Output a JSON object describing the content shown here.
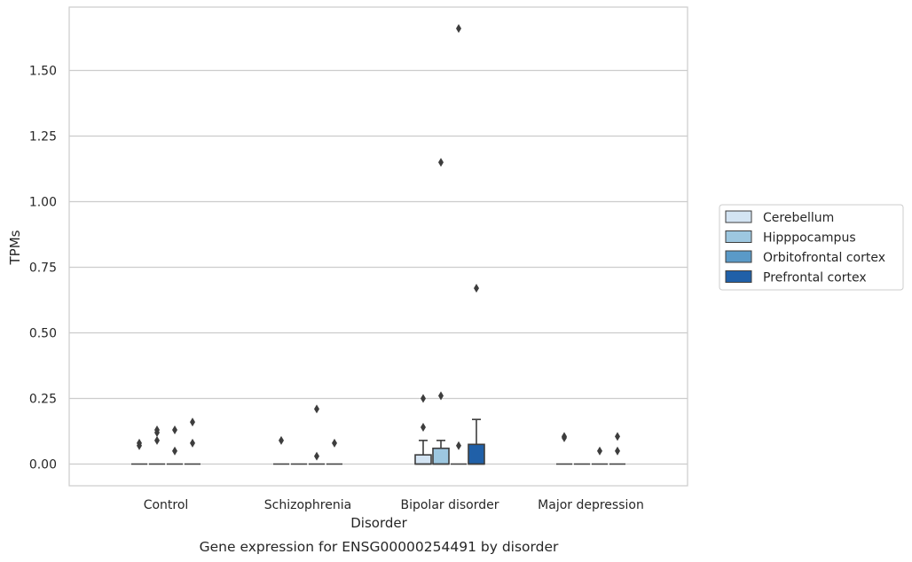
{
  "chart_data": {
    "type": "box",
    "caption": "Gene expression for ENSG00000254491 by disorder",
    "xlabel": "Disorder",
    "ylabel": "TPMs",
    "ylim": [
      -0.085,
      1.78
    ],
    "yticks": [
      "0.00",
      "0.25",
      "0.50",
      "0.75",
      "1.00",
      "1.25",
      "1.50"
    ],
    "ytick_values": [
      0.0,
      0.25,
      0.5,
      0.75,
      1.0,
      1.25,
      1.5
    ],
    "grid": "horizontal",
    "legend_position": "right",
    "categories": [
      "Control",
      "Schizophrenia",
      "Bipolar disorder",
      "Major depression"
    ],
    "series": [
      {
        "name": "Cerebellum",
        "color": "#d3e4f3"
      },
      {
        "name": "Hipppocampus",
        "color": "#9dc7e0"
      },
      {
        "name": "Orbitofrontal cortex",
        "color": "#5a9ac8"
      },
      {
        "name": "Prefrontal cortex",
        "color": "#2060a8"
      }
    ],
    "boxes": [
      {
        "category": "Control",
        "series": "Cerebellum",
        "q1": 0,
        "median": 0,
        "q3": 0,
        "whisker_low": 0,
        "whisker_high": 0,
        "outliers": [
          0.07,
          0.08
        ]
      },
      {
        "category": "Control",
        "series": "Hipppocampus",
        "q1": 0,
        "median": 0,
        "q3": 0,
        "whisker_low": 0,
        "whisker_high": 0,
        "outliers": [
          0.09,
          0.12,
          0.13
        ]
      },
      {
        "category": "Control",
        "series": "Orbitofrontal cortex",
        "q1": 0,
        "median": 0,
        "q3": 0,
        "whisker_low": 0,
        "whisker_high": 0,
        "outliers": [
          0.05,
          0.13
        ]
      },
      {
        "category": "Control",
        "series": "Prefrontal cortex",
        "q1": 0,
        "median": 0,
        "q3": 0,
        "whisker_low": 0,
        "whisker_high": 0,
        "outliers": [
          0.08,
          0.16
        ]
      },
      {
        "category": "Schizophrenia",
        "series": "Cerebellum",
        "q1": 0,
        "median": 0,
        "q3": 0,
        "whisker_low": 0,
        "whisker_high": 0,
        "outliers": [
          0.09
        ]
      },
      {
        "category": "Schizophrenia",
        "series": "Hipppocampus",
        "q1": 0,
        "median": 0,
        "q3": 0,
        "whisker_low": 0,
        "whisker_high": 0,
        "outliers": []
      },
      {
        "category": "Schizophrenia",
        "series": "Orbitofrontal cortex",
        "q1": 0,
        "median": 0,
        "q3": 0,
        "whisker_low": 0,
        "whisker_high": 0,
        "outliers": [
          0.03,
          0.21
        ]
      },
      {
        "category": "Schizophrenia",
        "series": "Prefrontal cortex",
        "q1": 0,
        "median": 0,
        "q3": 0,
        "whisker_low": 0,
        "whisker_high": 0,
        "outliers": [
          0.08
        ]
      },
      {
        "category": "Bipolar disorder",
        "series": "Cerebellum",
        "q1": 0,
        "median": 0,
        "q3": 0.035,
        "whisker_low": 0,
        "whisker_high": 0.09,
        "outliers": [
          0.14,
          0.25
        ]
      },
      {
        "category": "Bipolar disorder",
        "series": "Hipppocampus",
        "q1": 0,
        "median": 0,
        "q3": 0.06,
        "whisker_low": 0,
        "whisker_high": 0.09,
        "outliers": [
          0.26,
          1.15
        ]
      },
      {
        "category": "Bipolar disorder",
        "series": "Orbitofrontal cortex",
        "q1": 0,
        "median": 0,
        "q3": 0,
        "whisker_low": 0,
        "whisker_high": 0,
        "outliers": [
          0.07,
          1.66
        ]
      },
      {
        "category": "Bipolar disorder",
        "series": "Prefrontal cortex",
        "q1": 0,
        "median": 0,
        "q3": 0.075,
        "whisker_low": 0,
        "whisker_high": 0.17,
        "outliers": [
          0.67
        ]
      },
      {
        "category": "Major depression",
        "series": "Cerebellum",
        "q1": 0,
        "median": 0,
        "q3": 0,
        "whisker_low": 0,
        "whisker_high": 0,
        "outliers": [
          0.1,
          0.105
        ]
      },
      {
        "category": "Major depression",
        "series": "Hipppocampus",
        "q1": 0,
        "median": 0,
        "q3": 0,
        "whisker_low": 0,
        "whisker_high": 0,
        "outliers": []
      },
      {
        "category": "Major depression",
        "series": "Orbitofrontal cortex",
        "q1": 0,
        "median": 0,
        "q3": 0,
        "whisker_low": 0,
        "whisker_high": 0,
        "outliers": [
          0.05
        ]
      },
      {
        "category": "Major depression",
        "series": "Prefrontal cortex",
        "q1": 0,
        "median": 0,
        "q3": 0,
        "whisker_low": 0,
        "whisker_high": 0,
        "outliers": [
          0.05,
          0.105
        ]
      }
    ]
  }
}
